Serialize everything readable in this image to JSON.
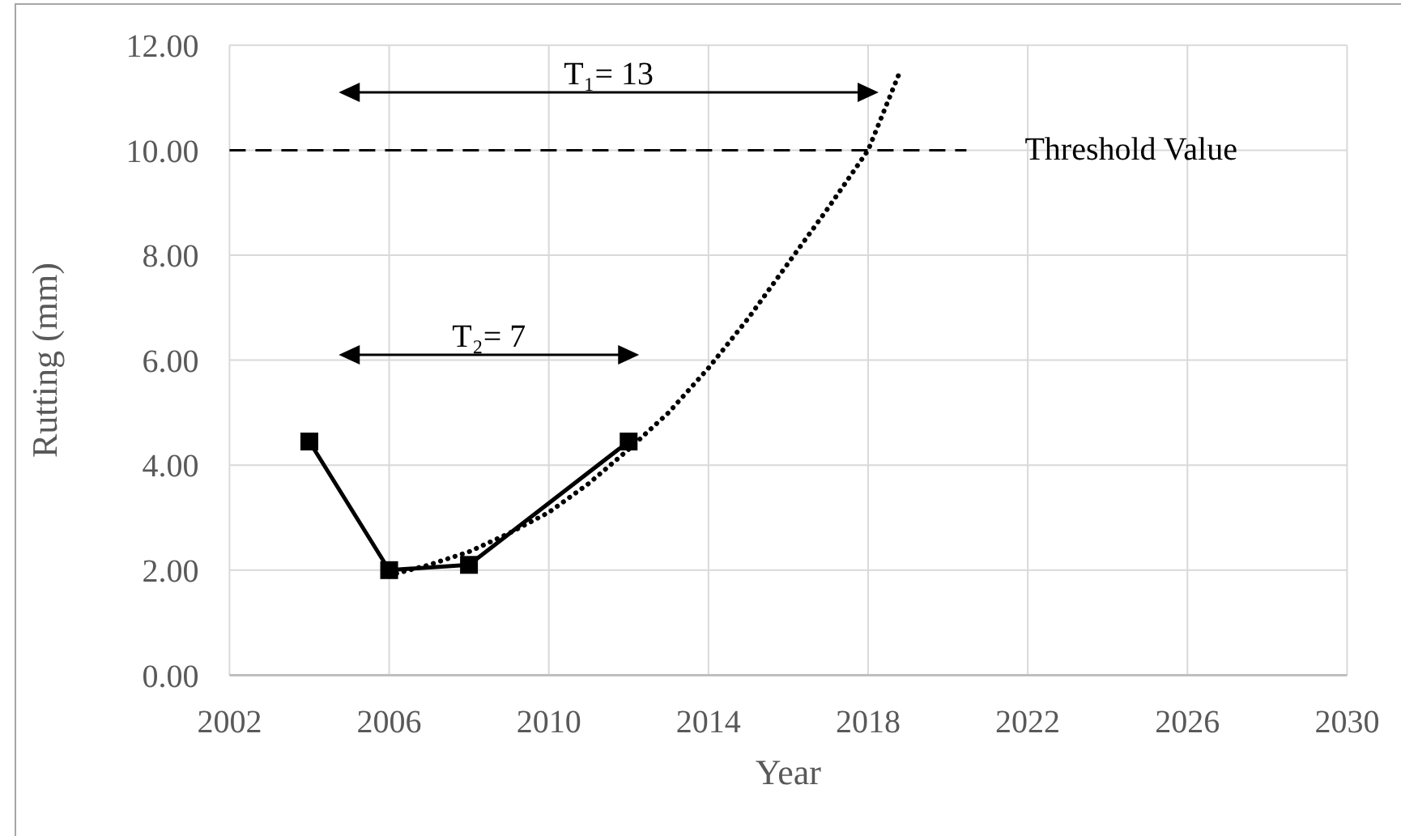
{
  "chart_data": {
    "type": "line",
    "xlabel": "Year",
    "ylabel": "Rutting (mm)",
    "xlim": [
      2002,
      2030
    ],
    "xticks": [
      2002,
      2006,
      2010,
      2014,
      2018,
      2022,
      2026,
      2030
    ],
    "ylim": [
      0,
      12
    ],
    "yticks": [
      {
        "value": 0,
        "label": "0.00"
      },
      {
        "value": 2,
        "label": "2.00"
      },
      {
        "value": 4,
        "label": "4.00"
      },
      {
        "value": 6,
        "label": "6.00"
      },
      {
        "value": 8,
        "label": "8.00"
      },
      {
        "value": 10,
        "label": "10.00"
      },
      {
        "value": 12,
        "label": "12.00"
      }
    ],
    "grid": true,
    "series": [
      {
        "color": "#000000",
        "marker": "square",
        "line_style": "solid",
        "x": [
          2004,
          2006,
          2008,
          2012
        ],
        "values": [
          4.45,
          2.0,
          2.1,
          4.45
        ]
      },
      {
        "color": "#000000",
        "marker": "none",
        "line_style": "dotted",
        "x": [
          2006,
          2007,
          2008,
          2009,
          2010,
          2011,
          2012,
          2013,
          2014,
          2015,
          2016,
          2017,
          2018,
          2018.8
        ],
        "values": [
          1.9,
          2.1,
          2.35,
          2.7,
          3.1,
          3.65,
          4.3,
          5.0,
          5.85,
          6.8,
          7.85,
          8.9,
          10.0,
          11.5
        ]
      },
      {
        "color": "#000000",
        "marker": "triangle",
        "line_style": "solid",
        "x": [
          2005,
          2018
        ],
        "values": [
          11.1,
          11.1
        ]
      },
      {
        "color": "#000000",
        "marker": "triangle",
        "line_style": "solid",
        "x": [
          2005,
          2012
        ],
        "values": [
          6.1,
          6.1
        ]
      }
    ],
    "ref_lines": [
      {
        "axis": "y",
        "value": 10,
        "label": "Threshold Value",
        "color": "#000000",
        "line_style": "dashed"
      }
    ],
    "annotations": [
      {
        "text": "T₁= 13",
        "x": 2011.5,
        "y": 11.1
      },
      {
        "text": "T₂= 7",
        "x": 2008.5,
        "y": 6.1
      }
    ]
  }
}
